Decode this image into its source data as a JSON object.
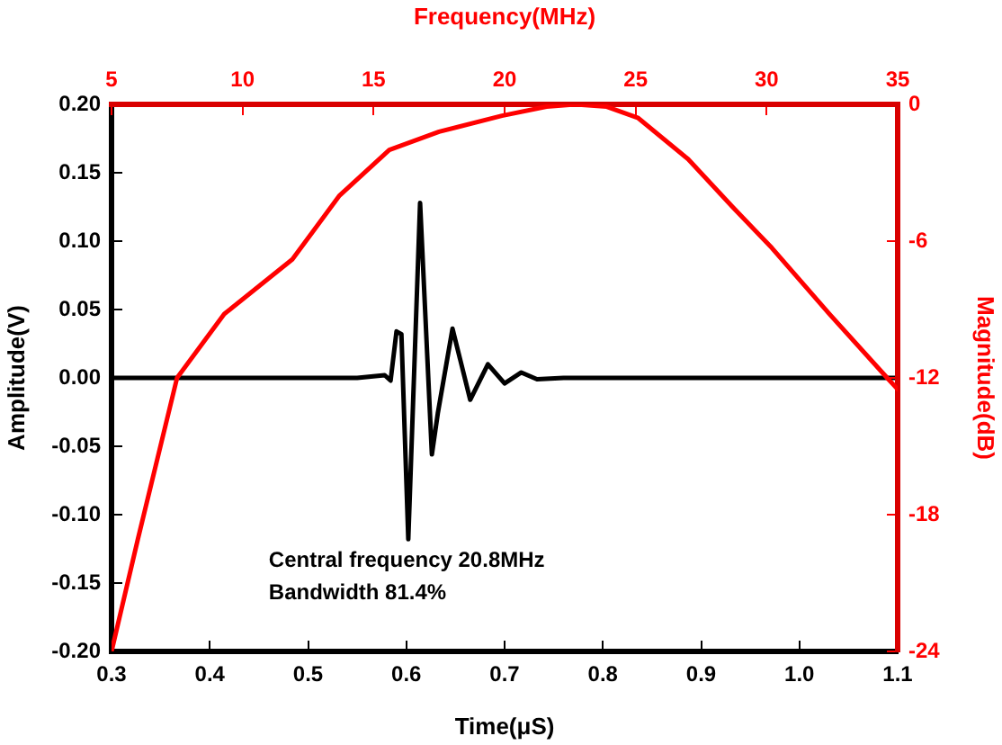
{
  "chart_data": [
    {
      "type": "line",
      "xlabel": "Time(μS)",
      "ylabel": "Amplitude(V)",
      "xlim": [
        0.3,
        1.1
      ],
      "xticks": [
        0.3,
        0.4,
        0.5,
        0.6,
        0.7,
        0.8,
        0.9,
        {
          "value": 1.0,
          "label": "1.0"
        },
        1.1
      ],
      "ylim": [
        -0.2,
        0.2
      ],
      "yticks": [
        {
          "value": -0.2,
          "label": "-0.20"
        },
        -0.15,
        {
          "value": -0.1,
          "label": "-0.10"
        },
        -0.05,
        {
          "value": 0,
          "label": "0.00"
        },
        0.05,
        {
          "value": 0.1,
          "label": "0.10"
        },
        0.15,
        {
          "value": 0.2,
          "label": "0.20"
        }
      ],
      "series": [
        {
          "color": "#000000",
          "x": [
            0.3,
            0.55,
            0.578,
            0.584,
            0.59,
            0.595,
            0.602,
            0.614,
            0.626,
            0.632,
            0.647,
            0.665,
            0.683,
            0.7,
            0.717,
            0.733,
            0.76,
            1.1
          ],
          "values": [
            0,
            0,
            0.002,
            -0.002,
            0.034,
            0.032,
            -0.118,
            0.128,
            -0.056,
            -0.026,
            0.036,
            -0.016,
            0.01,
            -0.004,
            0.004,
            -0.001,
            0,
            0
          ]
        }
      ],
      "annotations": [
        "Central frequency 20.8MHz",
        "Bandwidth 81.4%"
      ],
      "grid": false,
      "marker": "none",
      "line_style": "solid"
    },
    {
      "type": "line",
      "xlabel": "Frequency(MHz)",
      "ylabel": "Magnitude(dB)",
      "xlim": [
        5,
        35
      ],
      "xticks": [
        5,
        10,
        15,
        20,
        25,
        30,
        35
      ],
      "ylim": [
        -24,
        0
      ],
      "yticks": [
        -24,
        -18,
        -12,
        -6,
        0
      ],
      "series": [
        {
          "color": "#ff0000",
          "x": [
            5,
            6,
            7.5,
            9.3,
            11.9,
            13.7,
            15.6,
            17.5,
            19.9,
            21.6,
            22.7,
            23.9,
            25.1,
            27,
            28.7,
            30.2,
            32.4,
            34.6,
            35
          ],
          "values": [
            -24,
            -19.1,
            -12,
            -9.2,
            -6.8,
            -4,
            -2,
            -1.2,
            -0.5,
            -0.1,
            0,
            -0.1,
            -0.6,
            -2.4,
            -4.5,
            -6.3,
            -9.2,
            -12,
            -12.5
          ]
        }
      ],
      "grid": false,
      "marker": "none",
      "line_style": "solid"
    }
  ]
}
